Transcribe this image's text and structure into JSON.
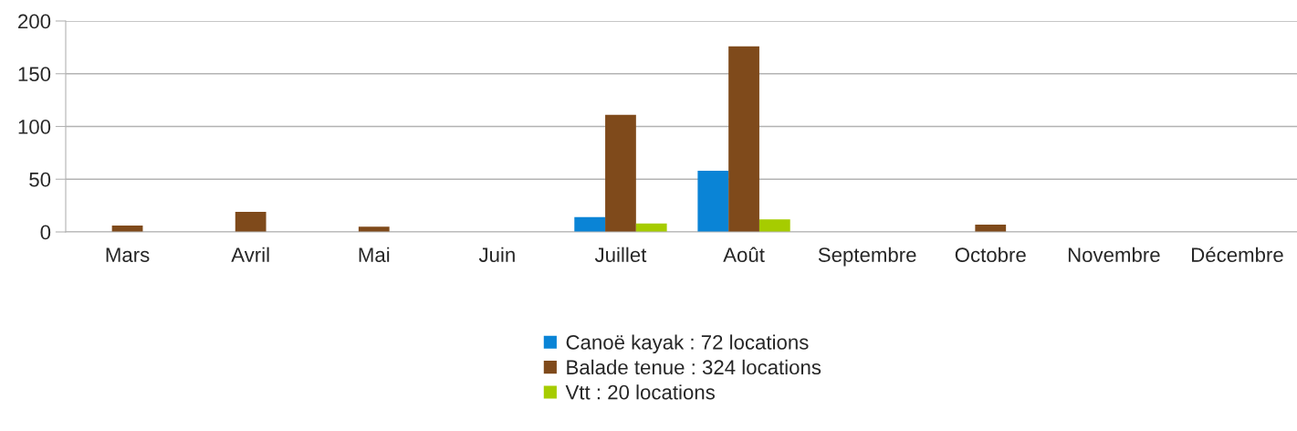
{
  "chart_data": {
    "type": "bar",
    "categories": [
      "Mars",
      "Avril",
      "Mai",
      "Juin",
      "Juillet",
      "Août",
      "Septembre",
      "Octobre",
      "Novembre",
      "Décembre"
    ],
    "series": [
      {
        "name": "Canoë kayak : 72 locations",
        "color": "#0a84d6",
        "values": [
          null,
          null,
          null,
          null,
          14,
          58,
          null,
          null,
          null,
          null
        ]
      },
      {
        "name": "Balade tenue : 324 locations",
        "color": "#7f4a1b",
        "values": [
          6,
          19,
          5,
          null,
          111,
          176,
          null,
          7,
          null,
          null
        ]
      },
      {
        "name": "Vtt : 20 locations",
        "color": "#a6cc00",
        "values": [
          null,
          null,
          null,
          null,
          8,
          12,
          null,
          null,
          null,
          null
        ]
      }
    ],
    "ylim": [
      0,
      200
    ],
    "yticks": [
      0,
      50,
      100,
      150,
      200
    ],
    "grid": "y",
    "legend": "bottom"
  }
}
